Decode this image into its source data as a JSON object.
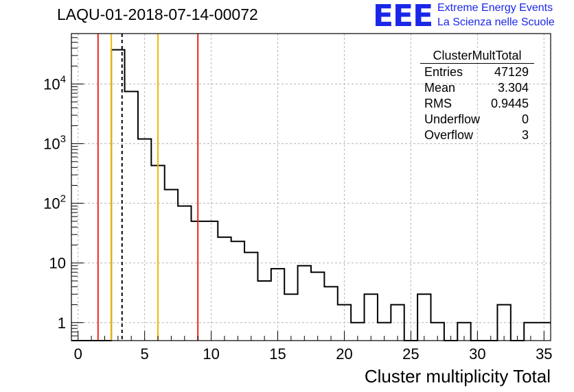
{
  "header": {
    "title": "LAQU-01-2018-07-14-00072"
  },
  "logo": {
    "mark": "EEE",
    "line1": "Extreme Energy Events",
    "line2": "La Scienza nelle Scuole",
    "color": "#1a26e8"
  },
  "stats_box": {
    "name": "ClusterMultTotal",
    "rows": [
      {
        "label": "Entries",
        "value": "47129"
      },
      {
        "label": "Mean",
        "value": "3.304"
      },
      {
        "label": "RMS",
        "value": "0.9445"
      },
      {
        "label": "Underflow",
        "value": "0"
      },
      {
        "label": "Overflow",
        "value": "3"
      }
    ]
  },
  "chart_data": {
    "type": "histogram",
    "title": "LAQU-01-2018-07-14-00072",
    "xlabel": "Cluster multiplicity Total",
    "ylabel": "",
    "y_scale": "log",
    "xlim": [
      -0.5,
      35.5
    ],
    "ylim": [
      0.5,
      70000
    ],
    "grid": true,
    "bin_width": 1,
    "bin_centers": [
      0,
      1,
      2,
      3,
      4,
      5,
      6,
      7,
      8,
      9,
      10,
      11,
      12,
      13,
      14,
      15,
      16,
      17,
      18,
      19,
      20,
      21,
      22,
      23,
      24,
      25,
      26,
      27,
      28,
      29,
      30,
      31,
      32,
      33,
      34,
      35
    ],
    "counts": [
      0,
      0,
      0,
      37500,
      7500,
      1200,
      430,
      170,
      90,
      50,
      50,
      27,
      23,
      15,
      5,
      8,
      3,
      9,
      7,
      4,
      2,
      1,
      3,
      1,
      2,
      0,
      3,
      1,
      0,
      1,
      0,
      0,
      2,
      0,
      1,
      1
    ],
    "x_ticks": [
      0,
      5,
      10,
      15,
      20,
      25,
      30,
      35
    ],
    "x_tick_labels": [
      "0",
      "5",
      "10",
      "15",
      "20",
      "25",
      "30",
      "35"
    ],
    "y_ticks": [
      1,
      10,
      100,
      1000,
      10000
    ],
    "y_tick_labels": [
      {
        "base": "1",
        "exp": ""
      },
      {
        "base": "10",
        "exp": ""
      },
      {
        "base": "10",
        "exp": "2"
      },
      {
        "base": "10",
        "exp": "3"
      },
      {
        "base": "10",
        "exp": "4"
      }
    ],
    "vertical_lines": [
      {
        "x": 1.5,
        "color": "#e8261a",
        "style": "solid"
      },
      {
        "x": 2.5,
        "color": "#f0b800",
        "style": "solid"
      },
      {
        "x": 3.304,
        "color": "#000000",
        "style": "dashed"
      },
      {
        "x": 6.0,
        "color": "#f0b800",
        "style": "solid"
      },
      {
        "x": 9.0,
        "color": "#e8261a",
        "style": "solid"
      }
    ]
  }
}
